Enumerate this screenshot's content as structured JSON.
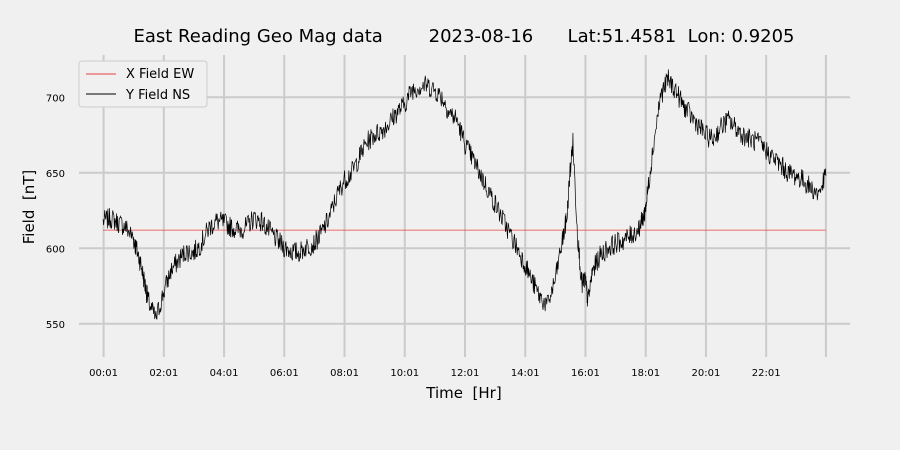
{
  "chart_data": {
    "type": "line",
    "title": "East Reading Geo Mag data        2023-08-16      Lat:51.4581  Lon: 0.9205",
    "xlabel": "Time  [Hr]",
    "ylabel": "Field  [nT]",
    "xlim": [
      -0.8,
      24.8
    ],
    "ylim": [
      528,
      728
    ],
    "x_ticks": [
      {
        "value": 0.0167,
        "label": "00:01"
      },
      {
        "value": 2.0167,
        "label": "02:01"
      },
      {
        "value": 4.0167,
        "label": "04:01"
      },
      {
        "value": 6.0167,
        "label": "06:01"
      },
      {
        "value": 8.0167,
        "label": "08:01"
      },
      {
        "value": 10.0167,
        "label": "10:01"
      },
      {
        "value": 12.0167,
        "label": "12:01"
      },
      {
        "value": 14.0167,
        "label": "14:01"
      },
      {
        "value": 16.0167,
        "label": "16:01"
      },
      {
        "value": 18.0167,
        "label": "18:01"
      },
      {
        "value": 20.0167,
        "label": "20:01"
      },
      {
        "value": 22.0167,
        "label": "22:01"
      },
      {
        "value": 24.0,
        "label": ""
      }
    ],
    "y_ticks": [
      {
        "value": 550,
        "label": "550"
      },
      {
        "value": 600,
        "label": "600"
      },
      {
        "value": 650,
        "label": "650"
      },
      {
        "value": 700,
        "label": "700"
      }
    ],
    "grid": true,
    "legend_position": "top-left",
    "series": [
      {
        "name": "X Field EW",
        "color": "#e8413f",
        "x": [
          0.0,
          24.0
        ],
        "y": [
          612,
          612
        ]
      },
      {
        "name": "Y Field NS",
        "color": "#000000",
        "x": [
          0.0,
          0.25,
          0.5,
          0.75,
          1.0,
          1.1,
          1.25,
          1.4,
          1.5,
          1.75,
          2.0,
          2.25,
          2.5,
          2.75,
          3.0,
          3.25,
          3.5,
          3.75,
          4.0,
          4.25,
          4.5,
          4.75,
          5.0,
          5.25,
          5.5,
          5.75,
          6.0,
          6.25,
          6.5,
          6.75,
          7.0,
          7.25,
          7.5,
          7.75,
          8.0,
          8.25,
          8.5,
          8.75,
          9.0,
          9.25,
          9.5,
          9.75,
          10.0,
          10.25,
          10.5,
          10.75,
          11.0,
          11.25,
          11.5,
          11.75,
          12.0,
          12.25,
          12.5,
          12.75,
          13.0,
          13.25,
          13.5,
          13.75,
          14.0,
          14.25,
          14.5,
          14.75,
          15.0,
          15.25,
          15.4,
          15.5,
          15.6,
          15.75,
          15.9,
          16.0,
          16.1,
          16.25,
          16.5,
          16.75,
          17.0,
          17.25,
          17.5,
          17.75,
          17.9,
          18.0,
          18.1,
          18.25,
          18.5,
          18.75,
          19.0,
          19.25,
          19.5,
          19.75,
          20.0,
          20.25,
          20.5,
          20.75,
          21.0,
          21.25,
          21.5,
          21.75,
          22.0,
          22.25,
          22.5,
          22.75,
          23.0,
          23.25,
          23.5,
          23.75,
          24.0
        ],
        "y": [
          618,
          620,
          617,
          614,
          607,
          600,
          590,
          575,
          565,
          553,
          570,
          585,
          592,
          598,
          597,
          603,
          613,
          618,
          617,
          614,
          612,
          614,
          620,
          618,
          612,
          606,
          601,
          598,
          597,
          601,
          603,
          610,
          620,
          634,
          645,
          650,
          660,
          670,
          675,
          678,
          683,
          690,
          695,
          705,
          707,
          708,
          705,
          700,
          690,
          685,
          670,
          660,
          650,
          640,
          630,
          620,
          610,
          600,
          590,
          578,
          568,
          562,
          578,
          605,
          620,
          650,
          670,
          610,
          575,
          580,
          565,
          585,
          595,
          600,
          603,
          605,
          608,
          612,
          618,
          625,
          640,
          665,
          700,
          712,
          705,
          695,
          688,
          682,
          675,
          672,
          680,
          685,
          680,
          675,
          672,
          670,
          665,
          660,
          655,
          650,
          648,
          645,
          640,
          636,
          648
        ]
      }
    ]
  }
}
